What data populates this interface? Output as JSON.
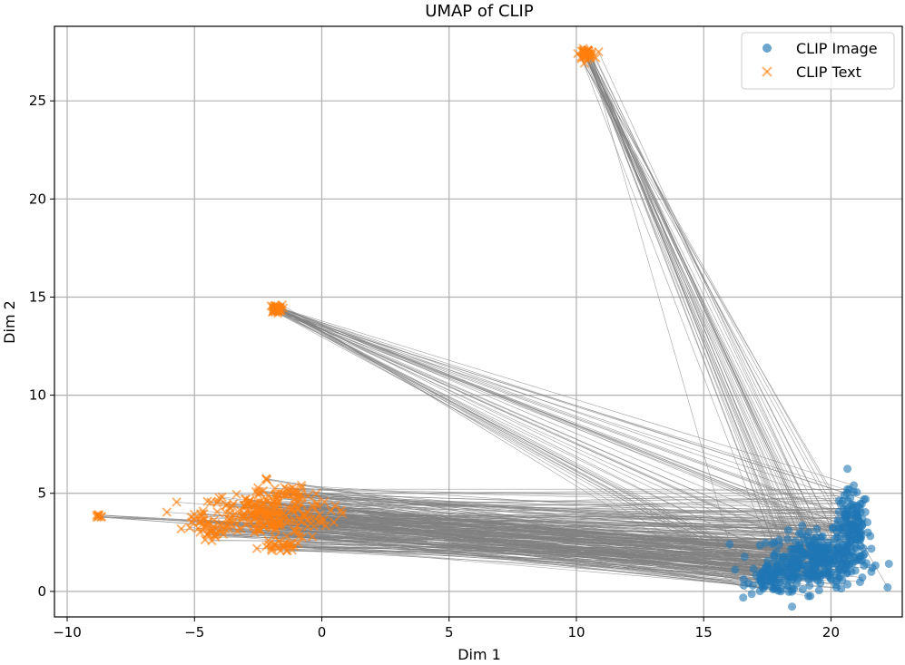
{
  "chart_data": {
    "type": "scatter",
    "title": "UMAP of CLIP",
    "xlabel": "Dim 1",
    "ylabel": "Dim 2",
    "xlim": [
      -10.5,
      22.8
    ],
    "ylim": [
      -1.3,
      28.8
    ],
    "xticks": [
      -10,
      -5,
      0,
      5,
      10,
      15,
      20
    ],
    "yticks": [
      0,
      5,
      10,
      15,
      20,
      25
    ],
    "grid": true,
    "legend_position": "top-right",
    "colors": {
      "image": "#1f77b4",
      "text": "#ff7f0e",
      "connector": "#808080"
    },
    "series": [
      {
        "name": "CLIP Image",
        "marker": "circle",
        "clusters": [
          {
            "cx": 19.5,
            "cy": 1.6,
            "sx": 1.0,
            "sy": 0.7,
            "n": 300
          },
          {
            "cx": 20.8,
            "cy": 3.3,
            "sx": 0.35,
            "sy": 0.9,
            "n": 120
          },
          {
            "cx": 17.8,
            "cy": 0.7,
            "sx": 0.55,
            "sy": 0.4,
            "n": 80
          }
        ]
      },
      {
        "name": "CLIP Text",
        "marker": "x",
        "clusters": [
          {
            "cx": 10.4,
            "cy": 27.4,
            "sx": 0.15,
            "sy": 0.12,
            "n": 40
          },
          {
            "cx": -1.8,
            "cy": 14.4,
            "sx": 0.12,
            "sy": 0.1,
            "n": 40
          },
          {
            "cx": -8.8,
            "cy": 3.8,
            "sx": 0.1,
            "sy": 0.06,
            "n": 8
          },
          {
            "cx": -2.2,
            "cy": 5.7,
            "sx": 0.05,
            "sy": 0.05,
            "n": 3
          },
          {
            "cx": -2.3,
            "cy": 3.9,
            "sx": 1.3,
            "sy": 0.6,
            "n": 200
          },
          {
            "cx": -1.6,
            "cy": 2.3,
            "sx": 0.3,
            "sy": 0.15,
            "n": 25
          },
          {
            "cx": -1.5,
            "cy": 5.0,
            "sx": 0.5,
            "sy": 0.2,
            "n": 30
          },
          {
            "cx": -4.4,
            "cy": 3.2,
            "sx": 0.35,
            "sy": 0.4,
            "n": 30
          }
        ]
      }
    ]
  }
}
